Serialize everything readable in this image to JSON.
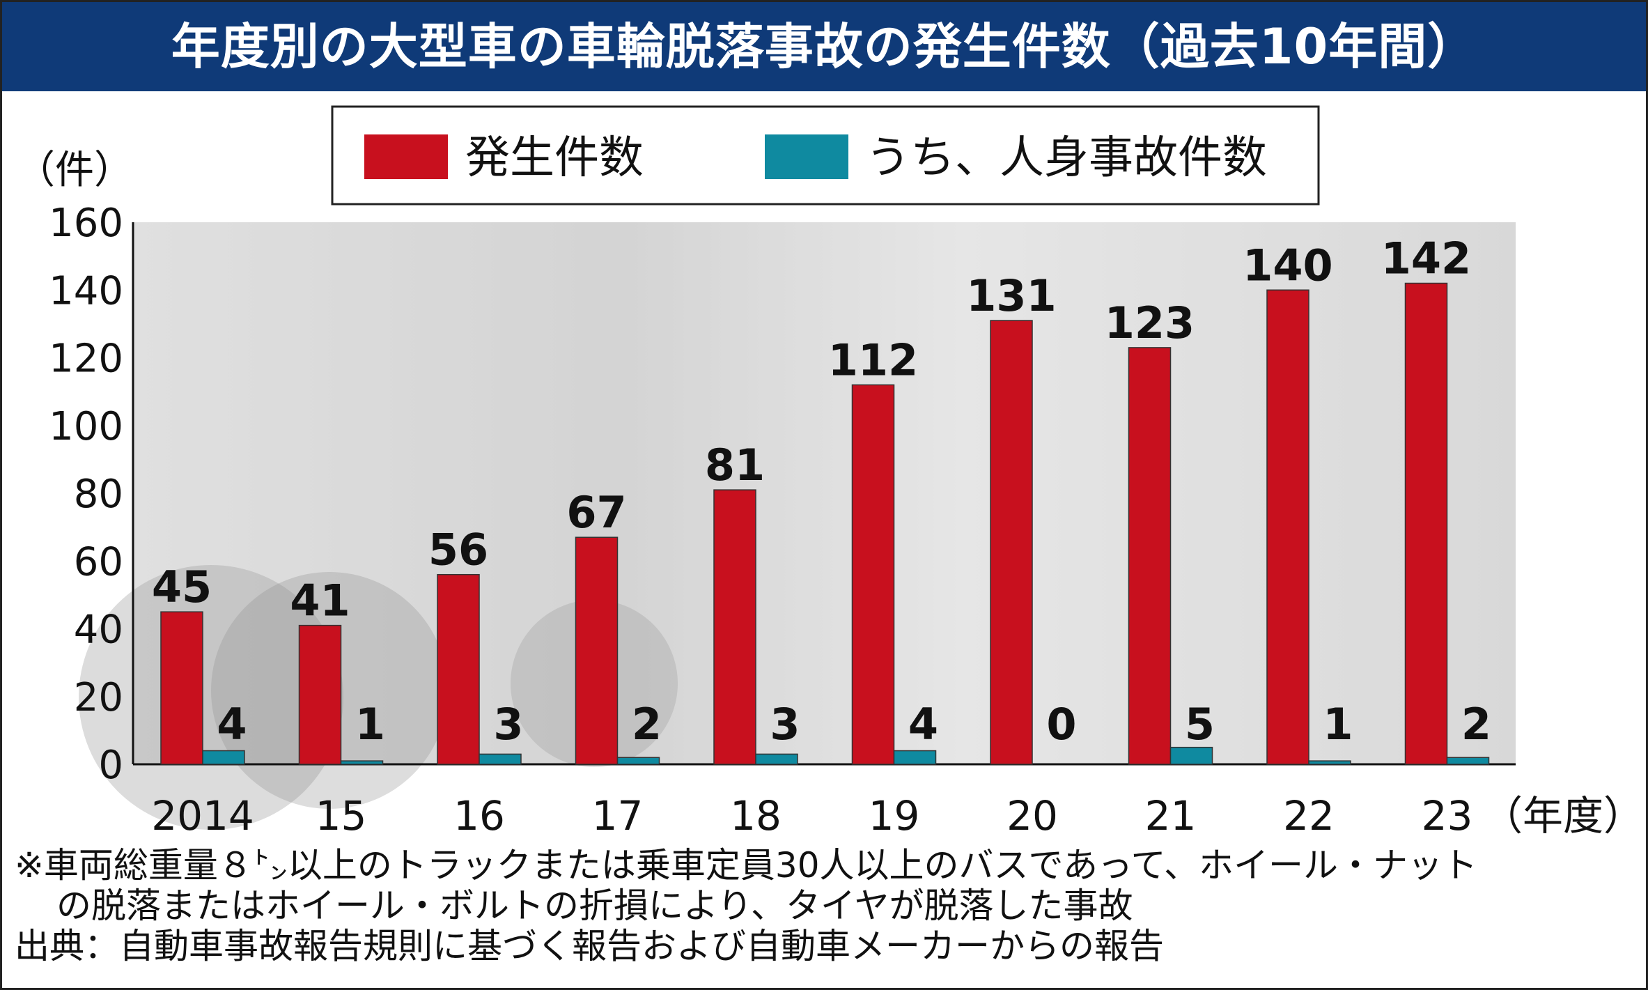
{
  "title": "年度別の大型車の車輪脱落事故の発生件数（過去10年間）",
  "chart_data": {
    "type": "bar",
    "categories": [
      "2014",
      "15",
      "16",
      "17",
      "18",
      "19",
      "20",
      "21",
      "22",
      "23"
    ],
    "series": [
      {
        "name": "発生件数",
        "color": "#c8101e",
        "values": [
          45,
          41,
          56,
          67,
          81,
          112,
          131,
          123,
          140,
          142
        ]
      },
      {
        "name": "うち、人身事故件数",
        "color": "#0f8aa0",
        "values": [
          4,
          1,
          3,
          2,
          3,
          4,
          0,
          5,
          1,
          2
        ]
      }
    ],
    "ylabel": "（件）",
    "xlabel": "（年度）",
    "ylim": [
      0,
      160
    ],
    "yticks": [
      0,
      20,
      40,
      60,
      80,
      100,
      120,
      140,
      160
    ],
    "legend_position": "top",
    "grid": false
  },
  "footnotes": [
    "※車両総重量８㌧以上のトラックまたは乗車定員30人以上のバスであって、ホイール・ナット",
    "の脱落またはホイール・ボルトの折損により、タイヤが脱落した事故",
    "出典：自動車事故報告規則に基づく報告および自動車メーカーからの報告"
  ]
}
